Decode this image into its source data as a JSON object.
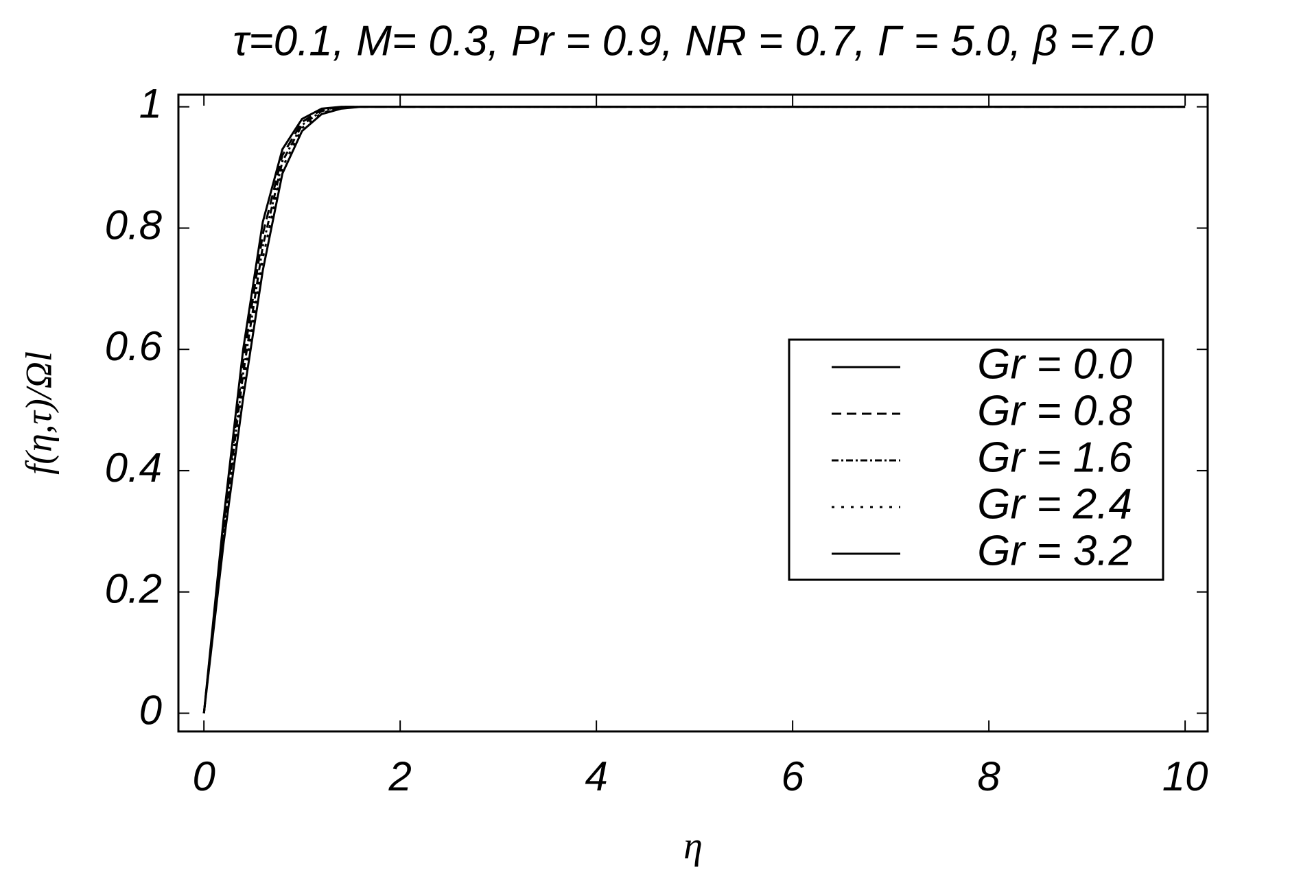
{
  "chart_data": {
    "type": "line",
    "title": "τ=0.1, M= 0.3, Pr = 0.9, NR = 0.7, Γ = 5.0, β =7.0",
    "x_label": "η",
    "y_label": "f(η,τ)/Ωl",
    "x": [
      0,
      0.2,
      0.4,
      0.6,
      0.8,
      1,
      1.2,
      1.4,
      1.6,
      2,
      4,
      6,
      8,
      10
    ],
    "series": [
      {
        "name": "Gr = 0.0",
        "color": "#000000",
        "dash": "solid",
        "values": [
          0,
          0.32,
          0.6,
          0.81,
          0.93,
          0.98,
          0.997,
          1,
          1,
          1,
          1,
          1,
          1,
          1
        ]
      },
      {
        "name": "Gr = 0.8",
        "color": "#000000",
        "dash": "dashed",
        "values": [
          0,
          0.31,
          0.58,
          0.79,
          0.92,
          0.975,
          0.995,
          1,
          1,
          1,
          1,
          1,
          1,
          1
        ]
      },
      {
        "name": "Gr = 1.6",
        "color": "#000000",
        "dash": "dashdot",
        "values": [
          0,
          0.3,
          0.56,
          0.77,
          0.91,
          0.97,
          0.993,
          0.999,
          1,
          1,
          1,
          1,
          1,
          1
        ]
      },
      {
        "name": "Gr = 2.4",
        "color": "#000000",
        "dash": "dotted",
        "values": [
          0,
          0.29,
          0.54,
          0.75,
          0.9,
          0.965,
          0.99,
          0.998,
          1,
          1,
          1,
          1,
          1,
          1
        ]
      },
      {
        "name": "Gr = 3.2",
        "color": "#000000",
        "dash": "solid",
        "values": [
          0,
          0.28,
          0.52,
          0.73,
          0.89,
          0.96,
          0.988,
          0.997,
          1,
          1,
          1,
          1,
          1,
          1
        ]
      }
    ],
    "xlim": [
      -0.26,
      10.23
    ],
    "ylim": [
      -0.03,
      1.02
    ],
    "xticks": [
      0,
      2,
      4,
      6,
      8,
      10
    ],
    "yticks": [
      0,
      0.2,
      0.4,
      0.6,
      0.8,
      1
    ],
    "grid": false,
    "legend_position": "right"
  }
}
